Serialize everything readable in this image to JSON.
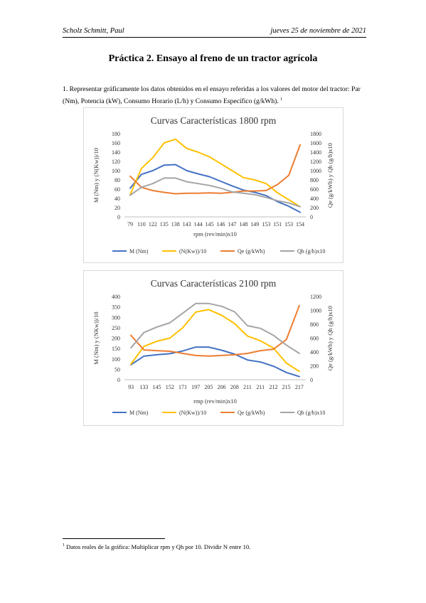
{
  "header": {
    "author": "Scholz Schmitt, Paul",
    "date": "jueves 25 de noviembre de 2021"
  },
  "title": "Práctica 2. Ensayo al freno de un tractor agrícola",
  "paragraph": "1. Representar gráficamente los datos obtenidos en el ensayo referidas a los valores del motor del tractor: Par (Nm), Potencia (kW), Consumo Horario (L/h) y Consumo Específico (g/kWh).",
  "paragraph_note_ref": "1",
  "footnote": {
    "number": "1",
    "text": "Datos reales de la gráfica: Multiplicar rpm y Qh por 10. Dividir N entre 10."
  },
  "colors": {
    "M": "#4472c4",
    "N": "#ffc000",
    "Qe": "#ed7d31",
    "Qh": "#a5a5a5"
  },
  "chart_data": [
    {
      "type": "line",
      "title": "Curvas Características 1800 rpm",
      "xlabel": "rpm (rev/min)x10",
      "ylabel_left": "M (Nm) y (N(Kw))/10",
      "ylabel_right": "Qe (g/kWh) y Qh (g/h)x10",
      "categories": [
        "79",
        "110",
        "122",
        "135",
        "138",
        "143",
        "144",
        "145",
        "146",
        "147",
        "148",
        "149",
        "153",
        "151",
        "153",
        "154"
      ],
      "yleft": {
        "min": 0,
        "max": 180,
        "step": 20,
        "ticks": [
          "0",
          "20",
          "40",
          "60",
          "80",
          "100",
          "120",
          "140",
          "160",
          "180"
        ]
      },
      "yright": {
        "min": 0,
        "max": 1800,
        "step": 200,
        "ticks": [
          "0",
          "200",
          "400",
          "600",
          "800",
          "1000",
          "1200",
          "1400",
          "1600",
          "1800"
        ]
      },
      "grid": false,
      "legend": "bottom",
      "series": [
        {
          "name": "M (Nm)",
          "axis": "left",
          "key": "M",
          "values": [
            62,
            92,
            100,
            112,
            113,
            100,
            93,
            87,
            77,
            67,
            58,
            53,
            46,
            33,
            23,
            10
          ]
        },
        {
          "name": "(N(Kw))/10",
          "axis": "left",
          "key": "N",
          "values": [
            48,
            105,
            128,
            160,
            168,
            148,
            140,
            130,
            115,
            100,
            85,
            80,
            72,
            52,
            37,
            22
          ]
        },
        {
          "name": "Qe (g/kWh)",
          "axis": "right",
          "key": "Qe",
          "values": [
            880,
            640,
            570,
            530,
            500,
            510,
            510,
            520,
            510,
            530,
            560,
            560,
            570,
            700,
            900,
            1560
          ]
        },
        {
          "name": "Qh (g/h)x10",
          "axis": "right",
          "key": "Qh",
          "values": [
            470,
            640,
            720,
            840,
            840,
            760,
            720,
            680,
            620,
            540,
            510,
            480,
            420,
            350,
            300,
            220
          ]
        }
      ]
    },
    {
      "type": "line",
      "title": "Curvas Características 2100 rpm",
      "xlabel": "rmp (rev/min)x10",
      "ylabel_left": "M (Nm) y (NKw))/10",
      "ylabel_right": "Qe (g/kWh) y Qh (g/h)x10",
      "categories": [
        "93",
        "133",
        "145",
        "152",
        "171",
        "197",
        "205",
        "206",
        "208",
        "211",
        "211",
        "212",
        "215",
        "217"
      ],
      "yleft": {
        "min": 0,
        "max": 400,
        "step": 50,
        "ticks": [
          "0",
          "50",
          "100",
          "150",
          "200",
          "250",
          "300",
          "350",
          "400"
        ]
      },
      "yright": {
        "min": 0,
        "max": 1200,
        "step": 200,
        "ticks": [
          "0",
          "200",
          "400",
          "600",
          "800",
          "1000",
          "1200"
        ]
      },
      "grid": false,
      "legend": "bottom",
      "series": [
        {
          "name": "M (Nm)",
          "axis": "left",
          "key": "M",
          "values": [
            72,
            113,
            120,
            125,
            138,
            157,
            157,
            142,
            123,
            95,
            85,
            65,
            35,
            15
          ]
        },
        {
          "name": "(N(Kw))/10",
          "axis": "left",
          "key": "N",
          "values": [
            75,
            160,
            185,
            200,
            250,
            325,
            337,
            310,
            270,
            210,
            187,
            152,
            80,
            40
          ]
        },
        {
          "name": "Qe (g/kWh)",
          "axis": "right",
          "key": "Qe",
          "values": [
            640,
            430,
            420,
            410,
            380,
            350,
            340,
            350,
            360,
            380,
            420,
            440,
            580,
            1070
          ]
        },
        {
          "name": "Qh (g/h)x10",
          "axis": "right",
          "key": "Qh",
          "values": [
            460,
            680,
            760,
            820,
            960,
            1100,
            1100,
            1060,
            980,
            780,
            740,
            640,
            500,
            380
          ]
        }
      ]
    }
  ]
}
